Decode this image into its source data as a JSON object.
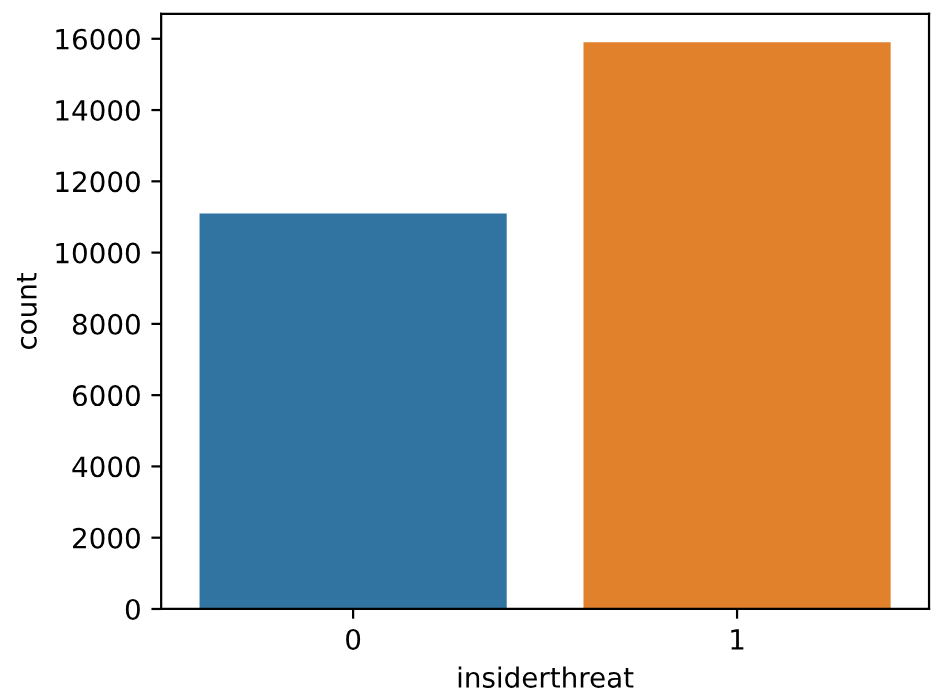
{
  "chart_data": {
    "type": "bar",
    "xlabel": "insiderthreat",
    "ylabel": "count",
    "categories": [
      "0",
      "1"
    ],
    "values": [
      11100,
      15900
    ],
    "colors": [
      "#3274a1",
      "#e1812c"
    ],
    "ylim": [
      0,
      16700
    ],
    "yticks": [
      0,
      2000,
      4000,
      6000,
      8000,
      10000,
      12000,
      14000,
      16000
    ],
    "grid": false
  }
}
